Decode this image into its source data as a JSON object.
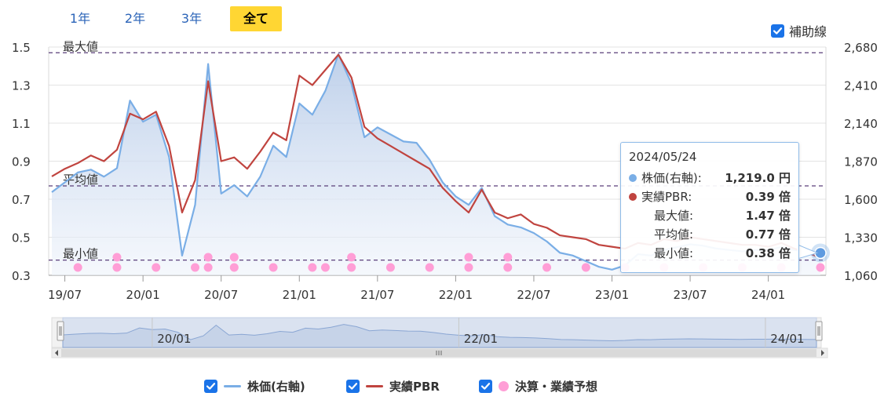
{
  "tabs": [
    {
      "label": "1年",
      "active": false
    },
    {
      "label": "2年",
      "active": false
    },
    {
      "label": "3年",
      "active": false
    },
    {
      "label": "全て",
      "active": true
    }
  ],
  "aux_toggle": {
    "label": "補助線",
    "checked": true
  },
  "legend": [
    {
      "label": "株価(右軸)",
      "checked": true,
      "color": "#7aaee6"
    },
    {
      "label": "実績PBR",
      "checked": true,
      "color": "#c0443f"
    },
    {
      "label": "決算・業績予想",
      "checked": true,
      "color": "#ff9ed6"
    }
  ],
  "tooltip": {
    "date": "2024/05/24",
    "rows": [
      {
        "label": "株価(右軸):",
        "value": "1,219.0 円",
        "dot": "#7aaee6"
      },
      {
        "label": "実績PBR:",
        "value": "0.39 倍",
        "dot": "#c0443f"
      },
      {
        "label": "最大値:",
        "value": "1.47 倍",
        "dot": ""
      },
      {
        "label": "平均値:",
        "value": "0.77 倍",
        "dot": ""
      },
      {
        "label": "最小値:",
        "value": "0.38 倍",
        "dot": ""
      }
    ]
  },
  "chart_data": {
    "type": "line",
    "x_range": [
      "2019-06",
      "2024-05"
    ],
    "y_left": {
      "ticks": [
        "1.5",
        "1.3",
        "1.1",
        "0.9",
        "0.7",
        "0.5",
        "0.3"
      ],
      "range": [
        0.3,
        1.5
      ],
      "unit": "倍"
    },
    "y_right": {
      "ticks": [
        "2,680",
        "2,410",
        "2,140",
        "1,870",
        "1,600",
        "1,330",
        "1,060"
      ],
      "range": [
        1060,
        2680
      ],
      "unit": "円"
    },
    "x_ticks": [
      "19/07",
      "20/01",
      "20/07",
      "21/01",
      "21/07",
      "22/01",
      "22/07",
      "23/01",
      "23/07",
      "24/01"
    ],
    "reference_lines": [
      {
        "label": "最大値",
        "value": 1.47
      },
      {
        "label": "平均値",
        "value": 0.77
      },
      {
        "label": "最小値",
        "value": 0.38
      }
    ],
    "series": [
      {
        "name": "実績PBR",
        "axis": "left",
        "color": "#c0443f",
        "points": [
          [
            "2019-06",
            0.82
          ],
          [
            "2019-07",
            0.86
          ],
          [
            "2019-08",
            0.89
          ],
          [
            "2019-09",
            0.93
          ],
          [
            "2019-10",
            0.9
          ],
          [
            "2019-11",
            0.96
          ],
          [
            "2019-12",
            1.15
          ],
          [
            "2020-01",
            1.12
          ],
          [
            "2020-02",
            1.16
          ],
          [
            "2020-03",
            0.98
          ],
          [
            "2020-04",
            0.63
          ],
          [
            "2020-05",
            0.8
          ],
          [
            "2020-06",
            1.32
          ],
          [
            "2020-07",
            0.9
          ],
          [
            "2020-08",
            0.92
          ],
          [
            "2020-09",
            0.86
          ],
          [
            "2020-10",
            0.95
          ],
          [
            "2020-11",
            1.05
          ],
          [
            "2020-12",
            1.01
          ],
          [
            "2021-01",
            1.35
          ],
          [
            "2021-02",
            1.3
          ],
          [
            "2021-03",
            1.38
          ],
          [
            "2021-04",
            1.46
          ],
          [
            "2021-05",
            1.34
          ],
          [
            "2021-06",
            1.08
          ],
          [
            "2021-07",
            1.02
          ],
          [
            "2021-08",
            0.98
          ],
          [
            "2021-09",
            0.94
          ],
          [
            "2021-10",
            0.9
          ],
          [
            "2021-11",
            0.86
          ],
          [
            "2021-12",
            0.76
          ],
          [
            "2022-01",
            0.69
          ],
          [
            "2022-02",
            0.63
          ],
          [
            "2022-03",
            0.75
          ],
          [
            "2022-04",
            0.63
          ],
          [
            "2022-05",
            0.6
          ],
          [
            "2022-06",
            0.62
          ],
          [
            "2022-07",
            0.57
          ],
          [
            "2022-08",
            0.55
          ],
          [
            "2022-09",
            0.51
          ],
          [
            "2022-10",
            0.5
          ],
          [
            "2022-11",
            0.49
          ],
          [
            "2022-12",
            0.46
          ],
          [
            "2023-01",
            0.45
          ],
          [
            "2023-02",
            0.44
          ],
          [
            "2023-03",
            0.47
          ],
          [
            "2023-04",
            0.46
          ],
          [
            "2023-05",
            0.49
          ],
          [
            "2023-06",
            0.48
          ],
          [
            "2023-07",
            0.5
          ],
          [
            "2023-08",
            0.49
          ],
          [
            "2023-09",
            0.48
          ],
          [
            "2023-10",
            0.47
          ],
          [
            "2023-11",
            0.46
          ],
          [
            "2023-12",
            0.46
          ],
          [
            "2024-01",
            0.45
          ],
          [
            "2024-02",
            0.47
          ],
          [
            "2024-03",
            0.44
          ],
          [
            "2024-04",
            0.42
          ],
          [
            "2024-05",
            0.39
          ]
        ]
      },
      {
        "name": "株価(右軸)",
        "axis": "right",
        "color": "#7aaee6",
        "points": [
          [
            "2019-06",
            1650
          ],
          [
            "2019-07",
            1720
          ],
          [
            "2019-08",
            1790
          ],
          [
            "2019-09",
            1810
          ],
          [
            "2019-10",
            1760
          ],
          [
            "2019-11",
            1820
          ],
          [
            "2019-12",
            2300
          ],
          [
            "2020-01",
            2150
          ],
          [
            "2020-02",
            2200
          ],
          [
            "2020-03",
            1900
          ],
          [
            "2020-04",
            1200
          ],
          [
            "2020-05",
            1560
          ],
          [
            "2020-06",
            2560
          ],
          [
            "2020-07",
            1640
          ],
          [
            "2020-08",
            1700
          ],
          [
            "2020-09",
            1620
          ],
          [
            "2020-10",
            1760
          ],
          [
            "2020-11",
            1980
          ],
          [
            "2020-12",
            1900
          ],
          [
            "2021-01",
            2280
          ],
          [
            "2021-02",
            2200
          ],
          [
            "2021-03",
            2370
          ],
          [
            "2021-04",
            2630
          ],
          [
            "2021-05",
            2420
          ],
          [
            "2021-06",
            2040
          ],
          [
            "2021-07",
            2110
          ],
          [
            "2021-08",
            2060
          ],
          [
            "2021-09",
            2010
          ],
          [
            "2021-10",
            2000
          ],
          [
            "2021-11",
            1880
          ],
          [
            "2021-12",
            1720
          ],
          [
            "2022-01",
            1620
          ],
          [
            "2022-02",
            1560
          ],
          [
            "2022-03",
            1680
          ],
          [
            "2022-04",
            1480
          ],
          [
            "2022-05",
            1420
          ],
          [
            "2022-06",
            1400
          ],
          [
            "2022-07",
            1360
          ],
          [
            "2022-08",
            1300
          ],
          [
            "2022-09",
            1220
          ],
          [
            "2022-10",
            1200
          ],
          [
            "2022-11",
            1160
          ],
          [
            "2022-12",
            1120
          ],
          [
            "2023-01",
            1100
          ],
          [
            "2023-02",
            1130
          ],
          [
            "2023-03",
            1210
          ],
          [
            "2023-04",
            1200
          ],
          [
            "2023-05",
            1240
          ],
          [
            "2023-06",
            1260
          ],
          [
            "2023-07",
            1280
          ],
          [
            "2023-08",
            1270
          ],
          [
            "2023-09",
            1250
          ],
          [
            "2023-10",
            1240
          ],
          [
            "2023-11",
            1230
          ],
          [
            "2023-12",
            1240
          ],
          [
            "2024-01",
            1240
          ],
          [
            "2024-02",
            1260
          ],
          [
            "2024-03",
            1240
          ],
          [
            "2024-04",
            1230
          ],
          [
            "2024-05",
            1219
          ]
        ]
      }
    ],
    "events": {
      "name": "決算・業績予想",
      "color": "#ff9ed6",
      "dates": [
        "2019-08",
        "2019-11",
        "2020-02",
        "2020-05",
        "2020-06",
        "2020-08",
        "2020-11",
        "2021-02",
        "2021-03",
        "2021-05",
        "2021-08",
        "2021-11",
        "2022-02",
        "2022-05",
        "2022-08",
        "2022-11",
        "2023-02",
        "2023-05",
        "2023-08",
        "2023-11",
        "2024-02",
        "2024-05"
      ],
      "stacked_markers": [
        "2019-11",
        "2020-06",
        "2020-08",
        "2021-05",
        "2022-02",
        "2022-05"
      ]
    },
    "navigator_ticks": [
      "20/01",
      "22/01",
      "24/01"
    ],
    "grid": true
  }
}
